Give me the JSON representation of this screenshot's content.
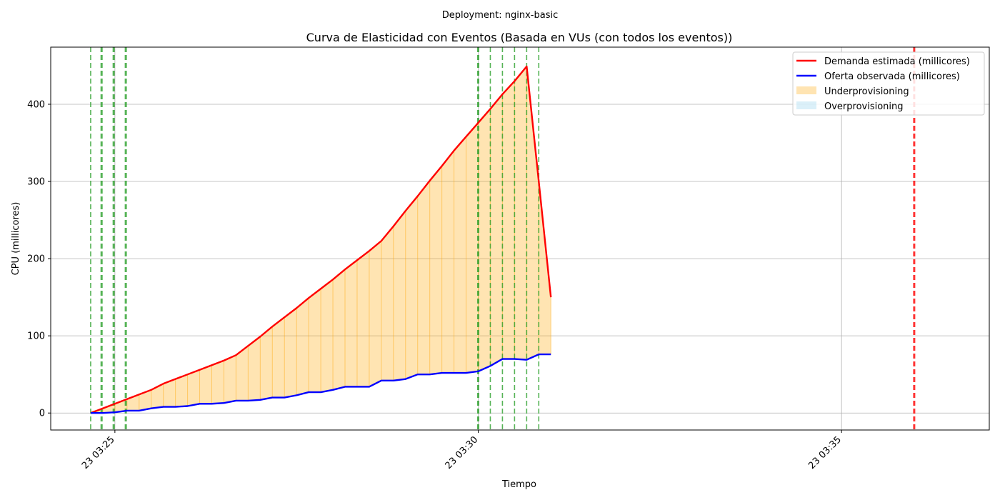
{
  "figure": {
    "suptitle": "Deployment: nginx-basic"
  },
  "chart_data": {
    "type": "line",
    "title": "Curva de Elasticidad con Eventos (Basada en VUs (con todos los eventos))",
    "xlabel": "Tiempo",
    "ylabel": "CPU (millicores)",
    "x_unit": "minutes",
    "xlim": [
      "23 03:24:07",
      "23 03:37:02"
    ],
    "ylim": [
      -22,
      474
    ],
    "grid": true,
    "legend_position": "top-right",
    "x_ticks": [
      {
        "value": "23 03:25",
        "label": "23 03:25"
      },
      {
        "value": "23 03:30",
        "label": "23 03:30"
      },
      {
        "value": "23 03:35",
        "label": "23 03:35"
      }
    ],
    "y_ticks": [
      0,
      100,
      200,
      300,
      400
    ],
    "x": [
      "03:24:40",
      "03:24:50",
      "03:25:00",
      "03:25:10",
      "03:25:20",
      "03:25:30",
      "03:25:40",
      "03:25:50",
      "03:26:00",
      "03:26:10",
      "03:26:20",
      "03:26:30",
      "03:26:40",
      "03:26:50",
      "03:27:00",
      "03:27:10",
      "03:27:20",
      "03:27:30",
      "03:27:40",
      "03:27:50",
      "03:28:00",
      "03:28:10",
      "03:28:20",
      "03:28:30",
      "03:28:40",
      "03:28:50",
      "03:29:00",
      "03:29:10",
      "03:29:20",
      "03:29:30",
      "03:29:40",
      "03:29:50",
      "03:30:00",
      "03:30:10",
      "03:30:20",
      "03:30:30",
      "03:30:40",
      "03:30:50",
      "03:31:00"
    ],
    "series": [
      {
        "name": "Demanda estimada (millicores)",
        "color": "#ff0000",
        "values": [
          0,
          6,
          12,
          18,
          24,
          30,
          38,
          44,
          50,
          56,
          62,
          68,
          75,
          87,
          99,
          112,
          124,
          136,
          149,
          161,
          173,
          186,
          198,
          210,
          223,
          242,
          262,
          281,
          301,
          320,
          340,
          358,
          376,
          394,
          413,
          430,
          449,
          300,
          150
        ]
      },
      {
        "name": "Oferta observada (millicores)",
        "color": "#0000ff",
        "values": [
          0,
          0,
          1,
          3,
          3,
          6,
          8,
          8,
          9,
          12,
          12,
          13,
          16,
          16,
          17,
          20,
          20,
          23,
          27,
          27,
          30,
          34,
          34,
          34,
          42,
          42,
          44,
          50,
          50,
          52,
          52,
          52,
          54,
          61,
          70,
          70,
          69,
          76,
          76
        ]
      }
    ],
    "fills": [
      {
        "name": "Underprovisioning",
        "color": "#ffa500"
      },
      {
        "name": "Overprovisioning",
        "color": "#87ceeb"
      }
    ],
    "event_lines": [
      {
        "x": "03:24:40",
        "color": "#2ca02c",
        "style": "dashed"
      },
      {
        "x": "03:24:49",
        "color": "#2ca02c",
        "style": "dashed-bold"
      },
      {
        "x": "03:24:59",
        "color": "#2ca02c",
        "style": "dashed-bold"
      },
      {
        "x": "03:25:09",
        "color": "#2ca02c",
        "style": "dashed-bold"
      },
      {
        "x": "03:30:00",
        "color": "#2ca02c",
        "style": "dashed-bold"
      },
      {
        "x": "03:30:10",
        "color": "#2ca02c",
        "style": "dashed"
      },
      {
        "x": "03:30:20",
        "color": "#2ca02c",
        "style": "dashed"
      },
      {
        "x": "03:30:30",
        "color": "#2ca02c",
        "style": "dashed"
      },
      {
        "x": "03:30:40",
        "color": "#2ca02c",
        "style": "dashed"
      },
      {
        "x": "03:30:50",
        "color": "#2ca02c",
        "style": "dashed"
      },
      {
        "x": "03:36:00",
        "color": "#ff0000",
        "style": "dashed-bold"
      }
    ]
  }
}
